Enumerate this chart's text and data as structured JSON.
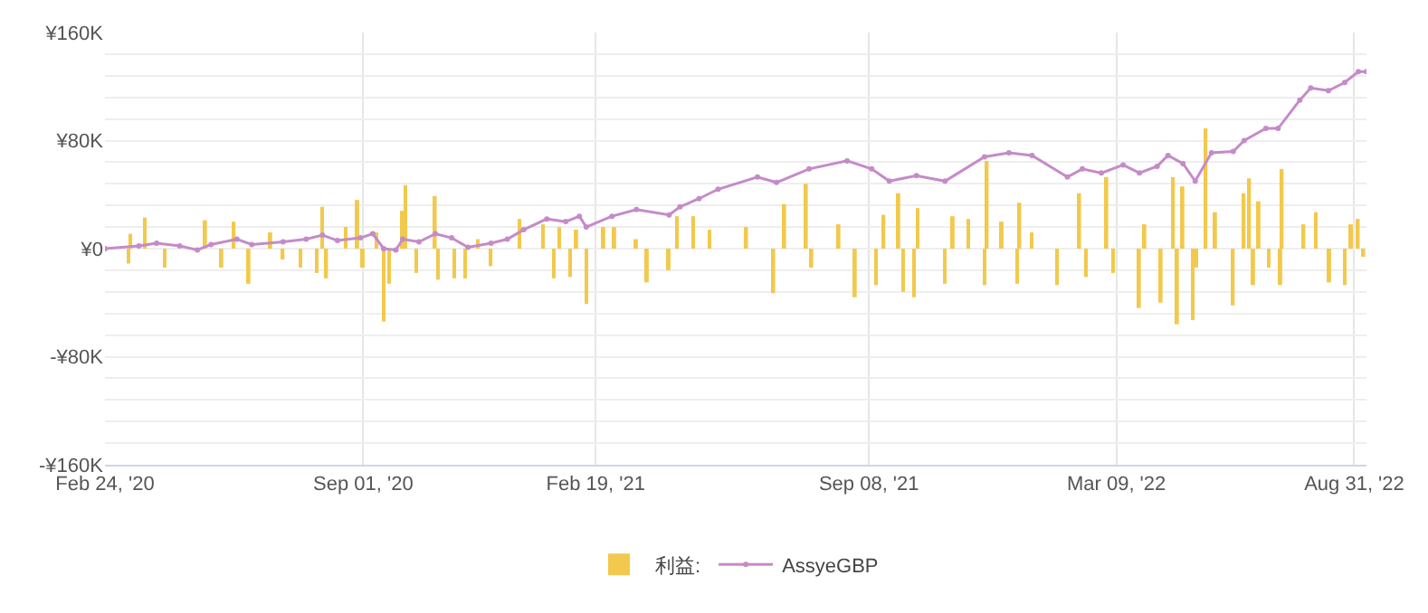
{
  "chart_data": {
    "type": "line",
    "xlim": [
      "2020-02-24",
      "2022-09-09"
    ],
    "xticks": [
      {
        "value": "2020-02-24",
        "label": "Feb 24, '20"
      },
      {
        "value": "2020-09-01",
        "label": "Sep 01, '20"
      },
      {
        "value": "2021-02-19",
        "label": "Feb 19, '21"
      },
      {
        "value": "2021-09-08",
        "label": "Sep 08, '21"
      },
      {
        "value": "2022-03-09",
        "label": "Mar 09, '22"
      },
      {
        "value": "2022-08-31",
        "label": "Aug 31, '22"
      }
    ],
    "ylim": [
      -160000,
      160000
    ],
    "yticks": [
      {
        "value": -160000,
        "label": "-¥160K"
      },
      {
        "value": -144000,
        "label": null
      },
      {
        "value": -128000,
        "label": null
      },
      {
        "value": -112000,
        "label": null
      },
      {
        "value": -96000,
        "label": null
      },
      {
        "value": -80000,
        "label": "-¥80K"
      },
      {
        "value": -64000,
        "label": null
      },
      {
        "value": -48000,
        "label": null
      },
      {
        "value": -32000,
        "label": null
      },
      {
        "value": -16000,
        "label": null
      },
      {
        "value": 0,
        "label": "¥0"
      },
      {
        "value": 16000,
        "label": null
      },
      {
        "value": 32000,
        "label": null
      },
      {
        "value": 48000,
        "label": null
      },
      {
        "value": 64000,
        "label": null
      },
      {
        "value": 80000,
        "label": "¥80K"
      },
      {
        "value": 96000,
        "label": null
      },
      {
        "value": 112000,
        "label": null
      },
      {
        "value": 128000,
        "label": null
      },
      {
        "value": 144000,
        "label": null
      },
      {
        "value": 160000,
        "label": "¥160K"
      }
    ],
    "grid": true,
    "legend": "bottom",
    "marker": "circle",
    "series": [
      {
        "name": "利益:",
        "type": "bar",
        "color": "#f2c94c",
        "x": [
          "2020-03-12",
          "2020-03-14",
          "2020-03-24",
          "2020-04-08",
          "2020-05-08",
          "2020-05-20",
          "2020-05-29",
          "2020-06-09",
          "2020-06-25",
          "2020-07-04",
          "2020-07-17",
          "2020-07-29",
          "2020-08-02",
          "2020-08-05",
          "2020-08-19",
          "2020-08-28",
          "2020-09-01",
          "2020-09-11",
          "2020-09-16",
          "2020-09-20",
          "2020-09-30",
          "2020-10-02",
          "2020-10-10",
          "2020-10-24",
          "2020-10-26",
          "2020-11-07",
          "2020-11-15",
          "2020-11-24",
          "2020-12-04",
          "2020-12-25",
          "2021-01-11",
          "2021-01-19",
          "2021-01-23",
          "2021-01-31",
          "2021-02-05",
          "2021-02-12",
          "2021-02-25",
          "2021-03-05",
          "2021-03-21",
          "2021-03-29",
          "2021-04-14",
          "2021-04-20",
          "2021-05-02",
          "2021-05-14",
          "2021-06-10",
          "2021-06-30",
          "2021-07-08",
          "2021-07-24",
          "2021-07-28",
          "2021-08-17",
          "2021-08-29",
          "2021-09-13",
          "2021-09-19",
          "2021-09-30",
          "2021-10-03",
          "2021-10-11",
          "2021-10-14",
          "2021-11-03",
          "2021-11-09",
          "2021-11-20",
          "2021-12-02",
          "2021-12-04",
          "2021-12-15",
          "2021-12-26",
          "2021-12-28",
          "2022-01-06",
          "2022-01-24",
          "2022-02-10",
          "2022-02-15",
          "2022-03-02",
          "2022-03-07",
          "2022-03-26",
          "2022-03-30",
          "2022-04-11",
          "2022-04-20",
          "2022-04-23",
          "2022-04-27",
          "2022-05-04",
          "2022-05-07",
          "2022-05-14",
          "2022-05-21",
          "2022-06-03",
          "2022-06-11",
          "2022-06-15",
          "2022-06-18",
          "2022-06-22",
          "2022-06-29",
          "2022-07-08",
          "2022-07-09",
          "2022-07-25",
          "2022-08-03",
          "2022-08-13",
          "2022-08-24",
          "2022-08-29",
          "2022-09-03",
          "2022-09-07"
        ],
        "values": [
          -11000,
          11000,
          23000,
          -14000,
          21000,
          -14000,
          20000,
          -26000,
          12000,
          -8000,
          -14000,
          -18000,
          31000,
          -22000,
          16000,
          36000,
          -14000,
          12000,
          -54000,
          -26000,
          28000,
          47000,
          -18000,
          39000,
          -23000,
          -22000,
          -22000,
          7000,
          -13000,
          22000,
          18000,
          -22000,
          16000,
          -21000,
          14000,
          -41000,
          16000,
          16000,
          7000,
          -25000,
          -16000,
          24000,
          24000,
          14000,
          16000,
          -33000,
          33000,
          48000,
          -14000,
          18000,
          -36000,
          -27000,
          25000,
          41000,
          -32000,
          -36000,
          30000,
          -26000,
          24000,
          22000,
          -27000,
          65000,
          20000,
          -26000,
          34000,
          12000,
          -27000,
          41000,
          -21000,
          53000,
          -18000,
          -44000,
          18000,
          -40000,
          53000,
          -56000,
          46000,
          -53000,
          -14000,
          89000,
          27000,
          -42000,
          41000,
          52000,
          -27000,
          35000,
          -14000,
          -27000,
          59000,
          18000,
          27000,
          -25000,
          -27000,
          18000,
          22000,
          -6000
        ]
      },
      {
        "name": "AssyeGBP",
        "color": "#c58bc8",
        "x": [
          "2020-02-24",
          "2020-03-20",
          "2020-04-02",
          "2020-04-19",
          "2020-05-02",
          "2020-05-12",
          "2020-05-31",
          "2020-06-11",
          "2020-07-04",
          "2020-07-21",
          "2020-08-02",
          "2020-08-13",
          "2020-08-30",
          "2020-09-08",
          "2020-09-16",
          "2020-09-25",
          "2020-09-30",
          "2020-10-12",
          "2020-10-24",
          "2020-11-05",
          "2020-11-17",
          "2020-12-04",
          "2020-12-16",
          "2020-12-28",
          "2021-01-14",
          "2021-01-28",
          "2021-02-07",
          "2021-02-12",
          "2021-03-03",
          "2021-03-21",
          "2021-04-14",
          "2021-04-22",
          "2021-05-06",
          "2021-05-20",
          "2021-06-18",
          "2021-07-02",
          "2021-07-26",
          "2021-08-23",
          "2021-09-10",
          "2021-09-23",
          "2021-10-13",
          "2021-11-03",
          "2021-12-02",
          "2021-12-20",
          "2022-01-06",
          "2022-02-01",
          "2022-02-12",
          "2022-02-26",
          "2022-03-14",
          "2022-03-26",
          "2022-04-08",
          "2022-04-16",
          "2022-04-27",
          "2022-05-06",
          "2022-05-18",
          "2022-06-03",
          "2022-06-11",
          "2022-06-27",
          "2022-07-06",
          "2022-07-22",
          "2022-07-30",
          "2022-08-12",
          "2022-08-24",
          "2022-09-03",
          "2022-09-09"
        ],
        "values": [
          0,
          2000,
          4000,
          2000,
          -1000,
          3000,
          7000,
          3000,
          5000,
          7000,
          10000,
          6000,
          8000,
          11000,
          0,
          -1000,
          7000,
          5000,
          11000,
          8000,
          1000,
          4000,
          7000,
          14000,
          22000,
          20000,
          24000,
          16000,
          24000,
          29000,
          25000,
          31000,
          37000,
          44000,
          53000,
          49000,
          59000,
          65000,
          59000,
          50000,
          54000,
          50000,
          68000,
          71000,
          69000,
          53000,
          59000,
          56000,
          62000,
          56000,
          61000,
          69000,
          63000,
          50000,
          71000,
          72000,
          80000,
          89000,
          89000,
          110000,
          119000,
          117000,
          123000,
          131000,
          131000
        ]
      }
    ]
  }
}
